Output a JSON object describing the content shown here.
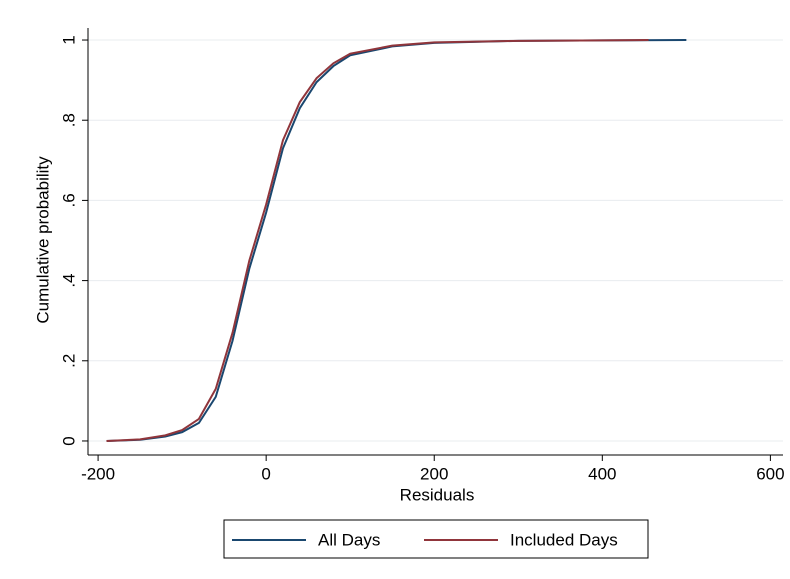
{
  "chart_data": {
    "type": "line",
    "x_label": "Residuals",
    "y_label": "Cumulative probability",
    "xlim": [
      -212,
      615
    ],
    "ylim": [
      -0.035,
      1.03
    ],
    "xticks": [
      -200,
      0,
      200,
      400,
      600
    ],
    "yticks": [
      0,
      {
        "value": 0.2,
        "label": ".2"
      },
      {
        "value": 0.4,
        "label": ".4"
      },
      {
        "value": 0.6,
        "label": ".6"
      },
      {
        "value": 0.8,
        "label": ".8"
      },
      1
    ],
    "grid": true,
    "legend": "bottom",
    "series": [
      {
        "name": "All Days",
        "color": "#1a476f",
        "x": [
          -190,
          -150,
          -120,
          -100,
          -80,
          -60,
          -40,
          -20,
          0,
          20,
          40,
          60,
          80,
          100,
          150,
          200,
          300,
          400,
          500
        ],
        "values": [
          0,
          0.003,
          0.011,
          0.022,
          0.045,
          0.11,
          0.25,
          0.43,
          0.57,
          0.73,
          0.83,
          0.895,
          0.935,
          0.962,
          0.984,
          0.993,
          0.998,
          0.999,
          1
        ]
      },
      {
        "name": "Included Days",
        "color": "#90353b",
        "x": [
          -190,
          -150,
          -120,
          -100,
          -80,
          -60,
          -40,
          -20,
          0,
          20,
          40,
          60,
          80,
          100,
          150,
          200,
          300,
          400,
          455
        ],
        "values": [
          0,
          0.004,
          0.014,
          0.027,
          0.055,
          0.13,
          0.27,
          0.45,
          0.59,
          0.75,
          0.845,
          0.905,
          0.942,
          0.966,
          0.986,
          0.994,
          0.998,
          0.999,
          1
        ]
      }
    ]
  }
}
